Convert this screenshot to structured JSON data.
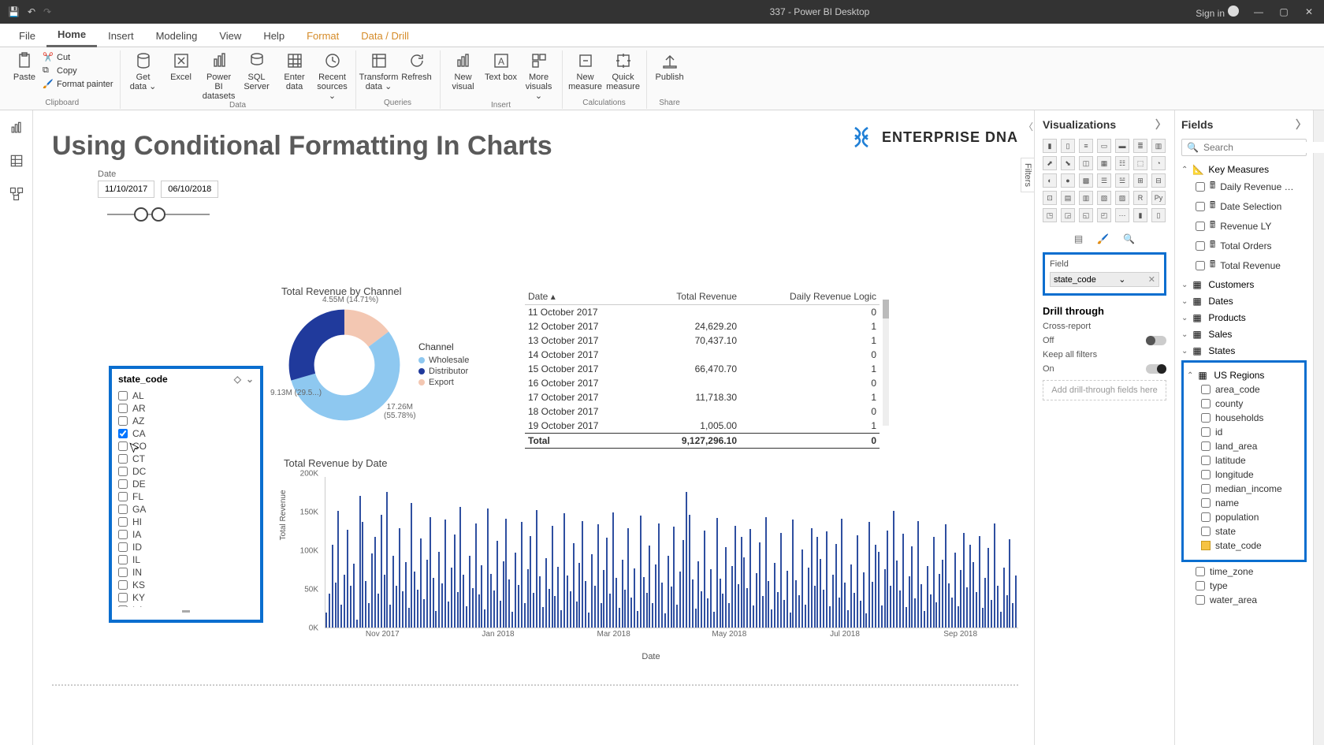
{
  "titlebar": {
    "title": "337 - Power BI Desktop",
    "signin": "Sign in"
  },
  "tabs": {
    "file": "File",
    "home": "Home",
    "insert": "Insert",
    "modeling": "Modeling",
    "view": "View",
    "help": "Help",
    "format": "Format",
    "datadrill": "Data / Drill"
  },
  "ribbon": {
    "paste": "Paste",
    "cut": "Cut",
    "copy": "Copy",
    "formatpainter": "Format painter",
    "clipboard_lbl": "Clipboard",
    "getdata": "Get data ⌄",
    "excel": "Excel",
    "pbids": "Power BI datasets",
    "sqlserver": "SQL Server",
    "enterdata": "Enter data",
    "recentsources": "Recent sources ⌄",
    "data_lbl": "Data",
    "transform": "Transform data ⌄",
    "refresh": "Refresh",
    "queries_lbl": "Queries",
    "newvisual": "New visual",
    "textbox": "Text box",
    "morevisuals": "More visuals ⌄",
    "insert_lbl": "Insert",
    "newmeasure": "New measure",
    "quickmeasure": "Quick measure",
    "calc_lbl": "Calculations",
    "publish": "Publish",
    "share_lbl": "Share"
  },
  "report": {
    "title": "Using Conditional Formatting In Charts",
    "brand": "ENTERPRISE DNA",
    "date_label": "Date",
    "date_from": "11/10/2017",
    "date_to": "06/10/2018"
  },
  "slicer": {
    "title": "state_code",
    "items": [
      "AL",
      "AR",
      "AZ",
      "CA",
      "CO",
      "CT",
      "DC",
      "DE",
      "FL",
      "GA",
      "HI",
      "IA",
      "ID",
      "IL",
      "IN",
      "KS",
      "KY",
      "LA"
    ],
    "checked": "CA"
  },
  "donut": {
    "title": "Total Revenue by Channel",
    "legend_title": "Channel",
    "series": [
      {
        "label": "Wholesale",
        "color": "#8ec8f0",
        "pct": 55.78,
        "value": "17.26M"
      },
      {
        "label": "Distributor",
        "color": "#203a9c",
        "pct": 29.5,
        "value": "9.13M"
      },
      {
        "label": "Export",
        "color": "#f3c7b2",
        "pct": 14.71,
        "value": "4.55M"
      }
    ],
    "captions": {
      "top": "4.55M\n(14.71%)",
      "left": "9.13M\n(29.5...)",
      "bottom": "17.26M\n(55.78%)"
    }
  },
  "table": {
    "columns": [
      "Date",
      "Total Revenue",
      "Daily Revenue Logic"
    ],
    "rows": [
      [
        "11 October 2017",
        "",
        "0"
      ],
      [
        "12 October 2017",
        "24,629.20",
        "1"
      ],
      [
        "13 October 2017",
        "70,437.10",
        "1"
      ],
      [
        "14 October 2017",
        "",
        "0"
      ],
      [
        "15 October 2017",
        "66,470.70",
        "1"
      ],
      [
        "16 October 2017",
        "",
        "0"
      ],
      [
        "17 October 2017",
        "11,718.30",
        "1"
      ],
      [
        "18 October 2017",
        "",
        "0"
      ],
      [
        "19 October 2017",
        "1,005.00",
        "1"
      ]
    ],
    "total": [
      "Total",
      "9,127,296.10",
      "0"
    ]
  },
  "barchart": {
    "title": "Total Revenue by Date",
    "ylabel": "Total Revenue",
    "xlabel": "Date",
    "ylim": [
      0,
      200000
    ],
    "yticks": [
      {
        "v": 0,
        "l": "0K"
      },
      {
        "v": 50000,
        "l": "50K"
      },
      {
        "v": 100000,
        "l": "100K"
      },
      {
        "v": 150000,
        "l": "150K"
      },
      {
        "v": 200000,
        "l": "200K"
      }
    ],
    "xticks": [
      "Nov 2017",
      "Jan 2018",
      "Mar 2018",
      "May 2018",
      "Jul 2018",
      "Sep 2018"
    ],
    "bar_color": "#2f4fa0",
    "values": [
      20,
      45,
      110,
      60,
      155,
      30,
      70,
      130,
      55,
      85,
      10,
      175,
      140,
      62,
      33,
      98,
      120,
      45,
      150,
      70,
      180,
      30,
      95,
      55,
      132,
      48,
      87,
      26,
      165,
      74,
      50,
      118,
      38,
      90,
      147,
      66,
      22,
      101,
      59,
      143,
      35,
      80,
      124,
      47,
      160,
      70,
      28,
      95,
      52,
      138,
      44,
      83,
      24,
      158,
      71,
      49,
      115,
      36,
      88,
      144,
      64,
      21,
      99,
      57,
      140,
      33,
      78,
      121,
      46,
      156,
      68,
      27,
      92,
      51,
      135,
      42,
      81,
      23,
      152,
      69,
      48,
      112,
      35,
      86,
      141,
      62,
      20,
      97,
      55,
      137,
      32,
      76,
      119,
      45,
      153,
      66,
      26,
      90,
      50,
      132,
      40,
      79,
      22,
      149,
      67,
      46,
      109,
      33,
      84,
      138,
      60,
      19,
      95,
      54,
      134,
      30,
      74,
      116,
      180,
      150,
      64,
      25,
      88,
      48,
      129,
      39,
      77,
      21,
      146,
      65,
      45,
      107,
      32,
      82,
      135,
      58,
      120,
      93,
      52,
      131,
      29,
      72,
      113,
      42,
      147,
      62,
      24,
      86,
      47,
      126,
      37,
      75,
      20,
      143,
      63,
      43,
      104,
      30,
      80,
      132,
      56,
      120,
      91,
      50,
      128,
      28,
      70,
      111,
      40,
      144,
      60,
      23,
      84,
      46,
      123,
      36,
      73,
      19,
      140,
      61,
      110,
      101,
      29,
      78,
      129,
      55,
      155,
      89,
      49,
      125,
      27,
      68,
      108,
      39,
      141,
      58,
      22,
      82,
      44,
      120,
      34,
      71,
      90,
      137,
      59,
      40,
      99,
      28,
      76,
      126,
      53,
      110,
      87,
      47,
      122,
      26,
      66,
      106,
      37,
      138,
      56,
      21,
      80,
      43,
      117,
      33,
      69
    ]
  },
  "vpane": {
    "title": "Visualizations",
    "filters_tab": "Filters",
    "fieldwell_label": "Field",
    "fieldwell_chip": "state_code",
    "drill_title": "Drill through",
    "crossreport": "Cross-report",
    "cross_state": "Off",
    "keepall": "Keep all filters",
    "keep_state": "On",
    "add_fields": "Add drill-through fields here"
  },
  "fpane": {
    "title": "Fields",
    "search_ph": "Search",
    "key_measures": {
      "name": "Key Measures",
      "fields": [
        "Daily Revenue …",
        "Date Selection",
        "Revenue LY",
        "Total Orders",
        "Total Revenue"
      ]
    },
    "tables": [
      "Customers",
      "Dates",
      "Products",
      "Sales",
      "States"
    ],
    "us_regions": {
      "name": "US Regions",
      "fields": [
        "area_code",
        "county",
        "households",
        "id",
        "land_area",
        "latitude",
        "longitude",
        "median_income",
        "name",
        "population",
        "state",
        "state_code"
      ],
      "checked": "state_code",
      "extra": [
        "time_zone",
        "type",
        "water_area"
      ]
    }
  }
}
